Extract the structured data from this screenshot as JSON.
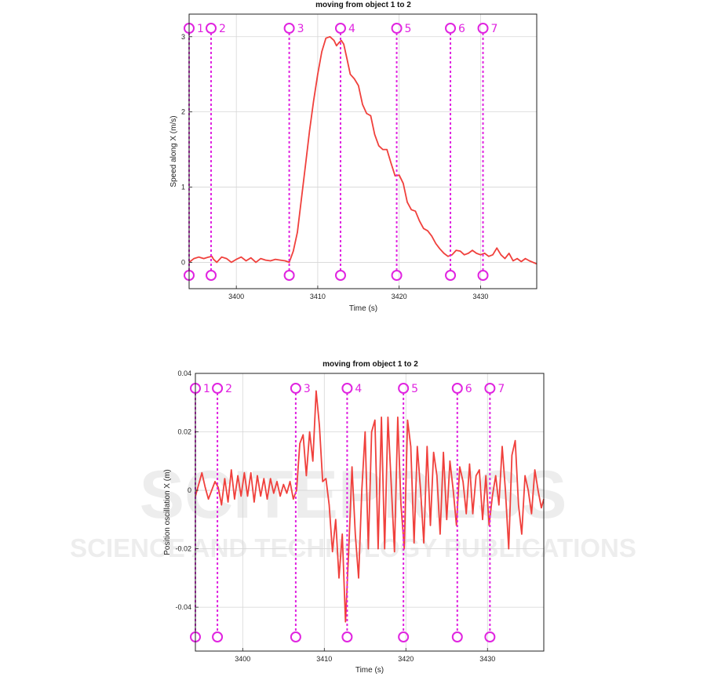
{
  "watermark": {
    "line1": "SCITEPRESS",
    "line2": "SCIENCE AND TECHNOLOGY PUBLICATIONS"
  },
  "chart_data": [
    {
      "type": "line",
      "title": "moving from object 1 to 2",
      "xlabel": "Time (s)",
      "ylabel": "Speed along X (m/s)",
      "xlim": [
        3394.2,
        3436.9
      ],
      "ylim": [
        -0.35,
        3.3
      ],
      "xticks": [
        3400,
        3410,
        3420,
        3430
      ],
      "yticks": [
        0,
        1,
        2,
        3
      ],
      "grid": true,
      "line_color": "#f0403c",
      "marker_color": "#e024e0",
      "markers": [
        {
          "label": "1",
          "x": 3394.2
        },
        {
          "label": "2",
          "x": 3396.9
        },
        {
          "label": "3",
          "x": 3406.5
        },
        {
          "label": "4",
          "x": 3412.8
        },
        {
          "label": "5",
          "x": 3419.7
        },
        {
          "label": "6",
          "x": 3426.3
        },
        {
          "label": "7",
          "x": 3430.3
        }
      ],
      "series": [
        {
          "x": [
            3394.2,
            3394.8,
            3395.4,
            3396.0,
            3396.6,
            3397.0,
            3397.2,
            3397.6,
            3398.2,
            3398.8,
            3399.4,
            3400.0,
            3400.6,
            3401.2,
            3401.8,
            3402.4,
            3403.0,
            3403.6,
            3404.2,
            3404.8,
            3405.4,
            3406.0,
            3406.5,
            3407.0,
            3407.5,
            3408.0,
            3408.5,
            3409.0,
            3409.5,
            3410.0,
            3410.5,
            3411.0,
            3411.5,
            3412.0,
            3412.3,
            3412.6,
            3412.9,
            3413.2,
            3413.6,
            3414.0,
            3414.5,
            3415.0,
            3415.5,
            3416.0,
            3416.5,
            3417.0,
            3417.5,
            3418.0,
            3418.5,
            3419.0,
            3419.5,
            3420.0,
            3420.5,
            3421.0,
            3421.5,
            3422.0,
            3422.5,
            3423.0,
            3423.5,
            3424.0,
            3424.5,
            3425.0,
            3425.5,
            3426.0,
            3426.5,
            3427.0,
            3427.5,
            3428.0,
            3428.5,
            3429.0,
            3429.5,
            3430.0,
            3430.5,
            3431.0,
            3431.5,
            3432.0,
            3432.5,
            3433.0,
            3433.5,
            3434.0,
            3434.5,
            3435.0,
            3435.5,
            3436.0,
            3436.9
          ],
          "values": [
            0.0,
            0.05,
            0.07,
            0.05,
            0.07,
            0.08,
            0.04,
            0.0,
            0.07,
            0.05,
            0.0,
            0.04,
            0.07,
            0.02,
            0.06,
            0.0,
            0.05,
            0.03,
            0.02,
            0.04,
            0.03,
            0.02,
            0.0,
            0.15,
            0.4,
            0.85,
            1.3,
            1.75,
            2.15,
            2.5,
            2.8,
            2.98,
            3.0,
            2.95,
            2.88,
            2.92,
            2.95,
            2.9,
            2.7,
            2.5,
            2.44,
            2.35,
            2.1,
            1.98,
            1.95,
            1.7,
            1.55,
            1.5,
            1.5,
            1.32,
            1.15,
            1.16,
            1.05,
            0.8,
            0.7,
            0.68,
            0.55,
            0.45,
            0.42,
            0.35,
            0.25,
            0.18,
            0.12,
            0.08,
            0.1,
            0.16,
            0.15,
            0.1,
            0.12,
            0.16,
            0.12,
            0.1,
            0.12,
            0.08,
            0.1,
            0.19,
            0.1,
            0.05,
            0.12,
            0.02,
            0.05,
            0.01,
            0.05,
            0.02,
            -0.02
          ]
        }
      ]
    },
    {
      "type": "line",
      "title": "moving from object 1 to 2",
      "xlabel": "Time (s)",
      "ylabel": "Position oscillation X (m)",
      "xlim": [
        3394.2,
        3436.9
      ],
      "ylim": [
        -0.055,
        0.04
      ],
      "xticks": [
        3400,
        3410,
        3420,
        3430
      ],
      "yticks": [
        0.04,
        0.02,
        0,
        -0.02,
        -0.04
      ],
      "ytick_labels": [
        "0.04",
        "0.02",
        "0",
        "-0.02",
        "-0.04"
      ],
      "grid": true,
      "line_color": "#f0403c",
      "marker_color": "#e024e0",
      "markers": [
        {
          "label": "1",
          "x": 3394.2
        },
        {
          "label": "2",
          "x": 3396.9
        },
        {
          "label": "3",
          "x": 3406.5
        },
        {
          "label": "4",
          "x": 3412.8
        },
        {
          "label": "5",
          "x": 3419.7
        },
        {
          "label": "6",
          "x": 3426.3
        },
        {
          "label": "7",
          "x": 3430.3
        }
      ],
      "series": [
        {
          "x": [
            3394.2,
            3394.6,
            3395.0,
            3395.4,
            3395.8,
            3396.2,
            3396.6,
            3397.0,
            3397.4,
            3397.8,
            3398.2,
            3398.6,
            3399.0,
            3399.4,
            3399.8,
            3400.2,
            3400.6,
            3401.0,
            3401.4,
            3401.8,
            3402.2,
            3402.6,
            3403.0,
            3403.4,
            3403.8,
            3404.2,
            3404.6,
            3405.0,
            3405.4,
            3405.8,
            3406.2,
            3406.6,
            3407.0,
            3407.4,
            3407.8,
            3408.2,
            3408.6,
            3409.0,
            3409.4,
            3409.8,
            3410.2,
            3410.6,
            3411.0,
            3411.4,
            3411.8,
            3412.2,
            3412.6,
            3413.0,
            3413.4,
            3413.8,
            3414.2,
            3414.6,
            3415.0,
            3415.4,
            3415.8,
            3416.2,
            3416.6,
            3417.0,
            3417.4,
            3417.8,
            3418.2,
            3418.6,
            3419.0,
            3419.4,
            3419.8,
            3420.2,
            3420.6,
            3421.0,
            3421.4,
            3421.8,
            3422.2,
            3422.6,
            3423.0,
            3423.4,
            3423.8,
            3424.2,
            3424.6,
            3425.0,
            3425.4,
            3425.8,
            3426.2,
            3426.6,
            3427.0,
            3427.4,
            3427.8,
            3428.2,
            3428.6,
            3429.0,
            3429.4,
            3429.8,
            3430.2,
            3430.6,
            3431.0,
            3431.4,
            3431.8,
            3432.2,
            3432.6,
            3433.0,
            3433.4,
            3433.8,
            3434.2,
            3434.6,
            3435.0,
            3435.4,
            3435.8,
            3436.2,
            3436.6,
            3436.9
          ],
          "values": [
            -0.002,
            0.002,
            0.006,
            0.001,
            -0.003,
            0.0,
            0.003,
            0.001,
            -0.005,
            0.004,
            -0.004,
            0.007,
            -0.003,
            0.005,
            -0.002,
            0.006,
            -0.002,
            0.006,
            -0.004,
            0.005,
            -0.002,
            0.004,
            -0.003,
            0.004,
            -0.001,
            0.003,
            -0.002,
            0.002,
            -0.001,
            0.003,
            -0.003,
            0.0,
            0.016,
            0.019,
            0.005,
            0.02,
            0.01,
            0.034,
            0.022,
            0.003,
            0.004,
            -0.005,
            -0.021,
            -0.01,
            -0.03,
            -0.015,
            -0.045,
            -0.02,
            0.008,
            -0.015,
            -0.03,
            0.0,
            0.02,
            -0.02,
            0.02,
            0.024,
            -0.02,
            0.025,
            -0.02,
            0.025,
            0.002,
            -0.021,
            0.025,
            -0.005,
            -0.02,
            0.024,
            0.015,
            -0.018,
            0.015,
            0.0,
            -0.018,
            0.015,
            -0.012,
            0.013,
            0.005,
            -0.015,
            0.013,
            -0.01,
            0.01,
            0.0,
            -0.012,
            0.008,
            0.003,
            -0.008,
            0.009,
            -0.008,
            0.005,
            0.007,
            -0.01,
            0.005,
            -0.012,
            -0.002,
            0.005,
            -0.005,
            0.015,
            0.0,
            -0.02,
            0.012,
            0.017,
            -0.005,
            -0.015,
            0.005,
            0.0,
            -0.008,
            0.007,
            0.0,
            -0.006,
            -0.003
          ]
        }
      ]
    }
  ]
}
